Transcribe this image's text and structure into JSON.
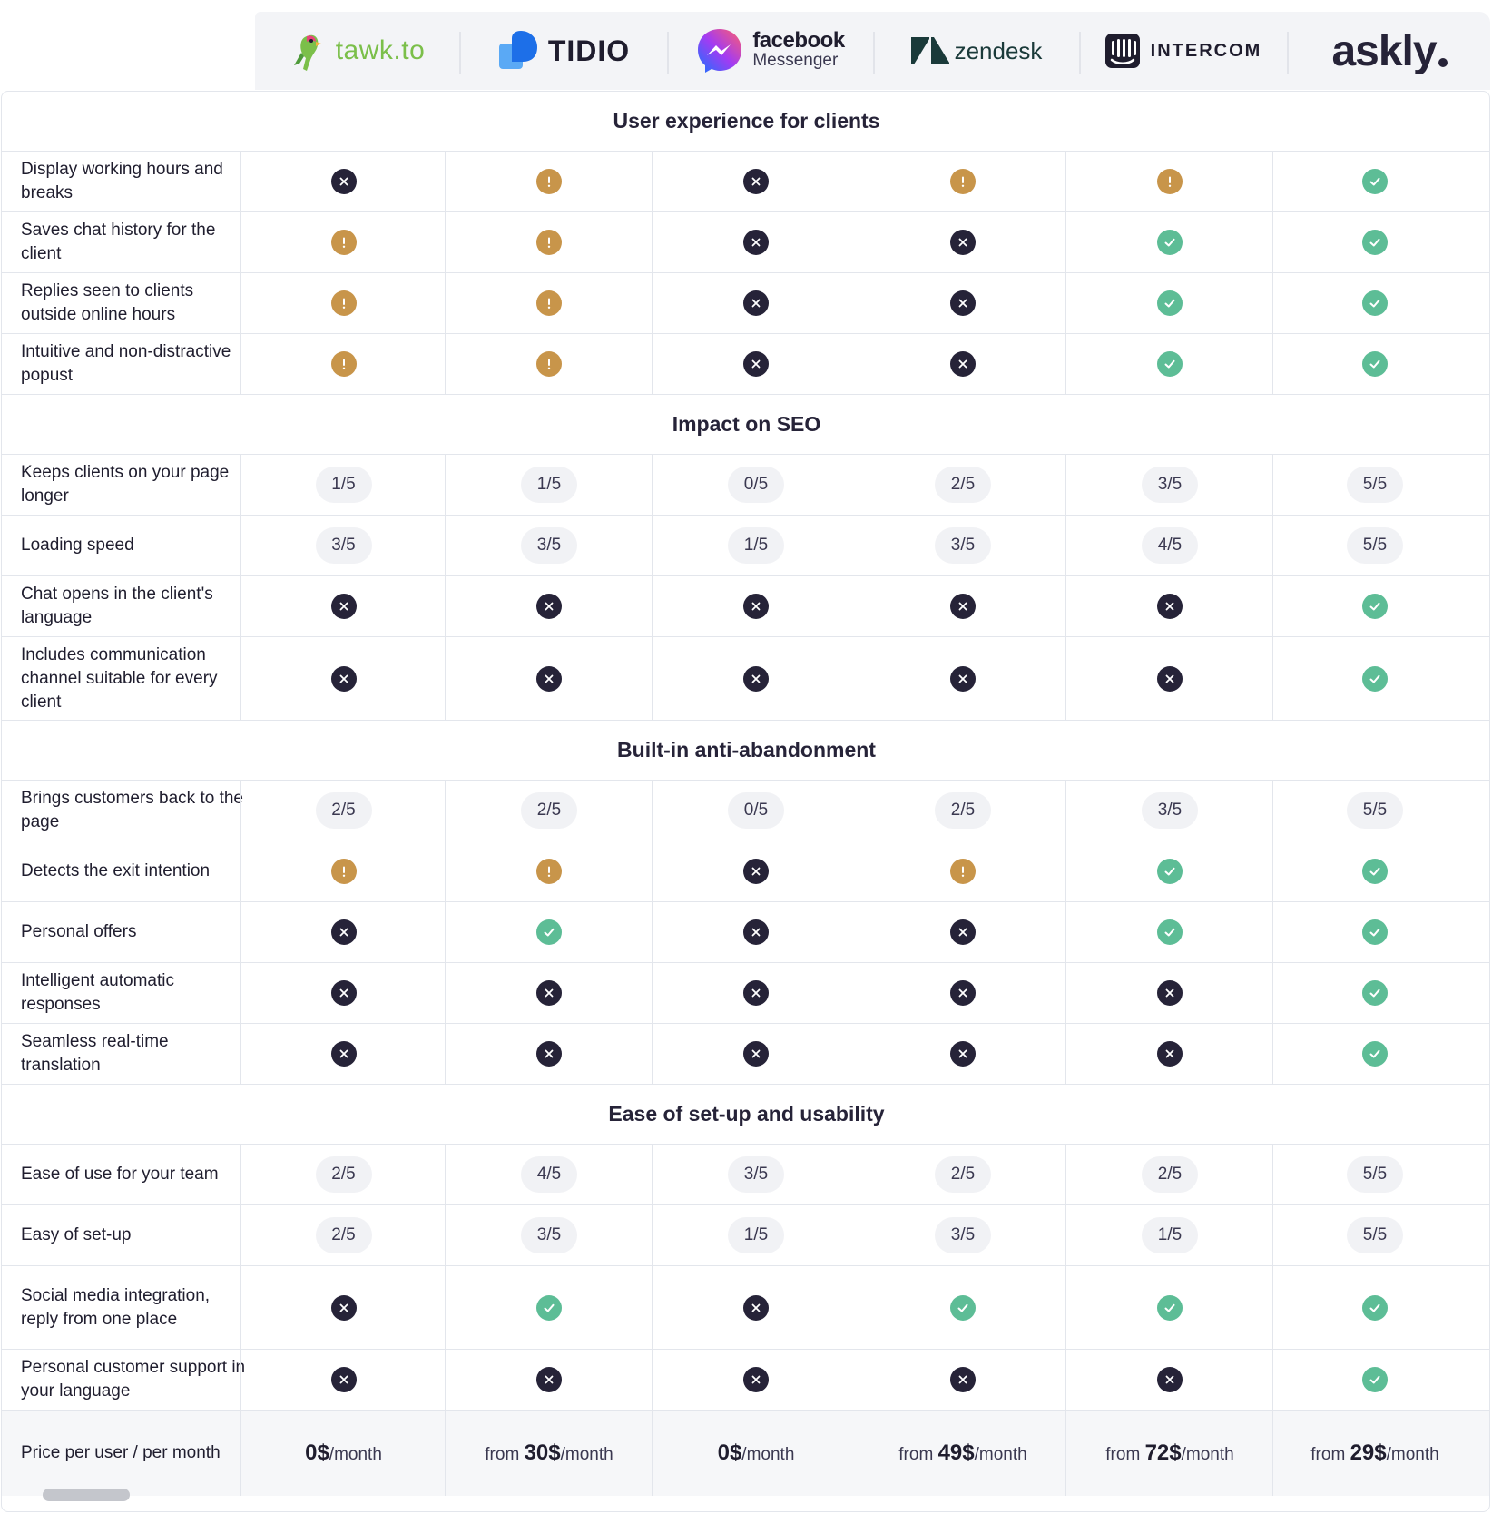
{
  "brands": [
    {
      "name": "tawk.to"
    },
    {
      "name": "TIDIO"
    },
    {
      "name_top": "facebook",
      "name_bottom": "Messenger"
    },
    {
      "name": "zendesk"
    },
    {
      "name": "INTERCOM"
    },
    {
      "name": "askly"
    }
  ],
  "colors": {
    "yes": "#5dbd96",
    "no": "#262338",
    "partial": "#c8954a",
    "pill_bg": "#f1f2f5",
    "border": "#e3e6ec"
  },
  "sections": [
    {
      "title": "User experience for clients",
      "rows": [
        {
          "label": "Display working hours and breaks",
          "values": [
            "no",
            "partial",
            "no",
            "partial",
            "partial",
            "yes"
          ]
        },
        {
          "label": "Saves chat history for the client",
          "values": [
            "partial",
            "partial",
            "no",
            "no",
            "yes",
            "yes"
          ]
        },
        {
          "label": "Replies seen to clients outside online hours",
          "values": [
            "partial",
            "partial",
            "no",
            "no",
            "yes",
            "yes"
          ]
        },
        {
          "label": "Intuitive and non-distractive popust",
          "values": [
            "partial",
            "partial",
            "no",
            "no",
            "yes",
            "yes"
          ]
        }
      ]
    },
    {
      "title": "Impact on SEO",
      "rows": [
        {
          "label": "Keeps clients on your page longer",
          "values": [
            "1/5",
            "1/5",
            "0/5",
            "2/5",
            "3/5",
            "5/5"
          ]
        },
        {
          "label": "Loading speed",
          "values": [
            "3/5",
            "3/5",
            "1/5",
            "3/5",
            "4/5",
            "5/5"
          ]
        },
        {
          "label": "Chat opens in the client's language",
          "values": [
            "no",
            "no",
            "no",
            "no",
            "no",
            "yes"
          ]
        },
        {
          "label": "Includes communication channel suitable for every client",
          "values": [
            "no",
            "no",
            "no",
            "no",
            "no",
            "yes"
          ]
        }
      ]
    },
    {
      "title": "Built-in anti-abandonment",
      "rows": [
        {
          "label": "Brings customers back to the page",
          "values": [
            "2/5",
            "2/5",
            "0/5",
            "2/5",
            "3/5",
            "5/5"
          ]
        },
        {
          "label": "Detects the exit intention",
          "values": [
            "partial",
            "partial",
            "no",
            "partial",
            "yes",
            "yes"
          ]
        },
        {
          "label": "Personal offers",
          "values": [
            "no",
            "yes",
            "no",
            "no",
            "yes",
            "yes"
          ]
        },
        {
          "label": "Intelligent automatic responses",
          "values": [
            "no",
            "no",
            "no",
            "no",
            "no",
            "yes"
          ]
        },
        {
          "label": "Seamless real-time translation",
          "values": [
            "no",
            "no",
            "no",
            "no",
            "no",
            "yes"
          ]
        }
      ]
    },
    {
      "title": "Ease of set-up and usability",
      "rows": [
        {
          "label": "Ease of use for your team",
          "values": [
            "2/5",
            "4/5",
            "3/5",
            "2/5",
            "2/5",
            "5/5"
          ]
        },
        {
          "label": "Easy of set-up",
          "values": [
            "2/5",
            "3/5",
            "1/5",
            "3/5",
            "1/5",
            "5/5"
          ]
        },
        {
          "label": "Social media integration, reply from one place",
          "values": [
            "no",
            "yes",
            "no",
            "yes",
            "yes",
            "yes"
          ]
        },
        {
          "label": "Personal customer support in your language",
          "values": [
            "no",
            "no",
            "no",
            "no",
            "no",
            "yes"
          ]
        }
      ]
    }
  ],
  "price": {
    "label": "Price per user / per month",
    "values": [
      {
        "prefix": "",
        "amount": "0$",
        "suffix": "/month"
      },
      {
        "prefix": "from ",
        "amount": "30$",
        "suffix": "/month"
      },
      {
        "prefix": "",
        "amount": "0$",
        "suffix": "/month"
      },
      {
        "prefix": "from ",
        "amount": "49$",
        "suffix": "/month"
      },
      {
        "prefix": "from ",
        "amount": "72$",
        "suffix": "/month"
      },
      {
        "prefix": "from ",
        "amount": "29$",
        "suffix": "/month"
      }
    ]
  }
}
